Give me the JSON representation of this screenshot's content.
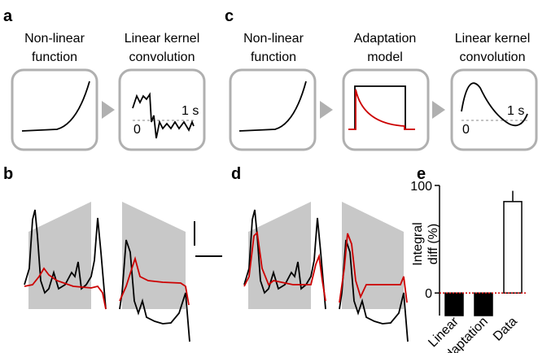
{
  "panel_a": {
    "letter": "a",
    "boxes": [
      {
        "lines": [
          "Non-linear",
          "function"
        ]
      },
      {
        "lines": [
          "Linear kernel",
          "convolution"
        ]
      }
    ],
    "time_label": "1 s",
    "zero_label": "0"
  },
  "panel_b": {
    "letter": "b"
  },
  "panel_c": {
    "letter": "c",
    "boxes": [
      {
        "lines": [
          "Non-linear",
          "function"
        ]
      },
      {
        "lines": [
          "Adaptation",
          "model"
        ]
      },
      {
        "lines": [
          "Linear kernel",
          "convolution"
        ]
      }
    ],
    "time_label": "1 s",
    "zero_label": "0"
  },
  "panel_d": {
    "letter": "d"
  },
  "panel_e": {
    "letter": "e",
    "chart_data": {
      "type": "bar",
      "ylabel": [
        "Integral",
        "diff (%)"
      ],
      "categories": [
        "Linear",
        "Adaptation",
        "Data"
      ],
      "values": [
        -21,
        -21,
        85
      ],
      "errors": [
        null,
        null,
        10
      ],
      "colors": [
        "#000000",
        "#000000",
        "#ffffff"
      ],
      "ylim": [
        -21,
        100
      ],
      "yticks": [
        0,
        100
      ],
      "zero_line_color": "#cc0000"
    }
  }
}
